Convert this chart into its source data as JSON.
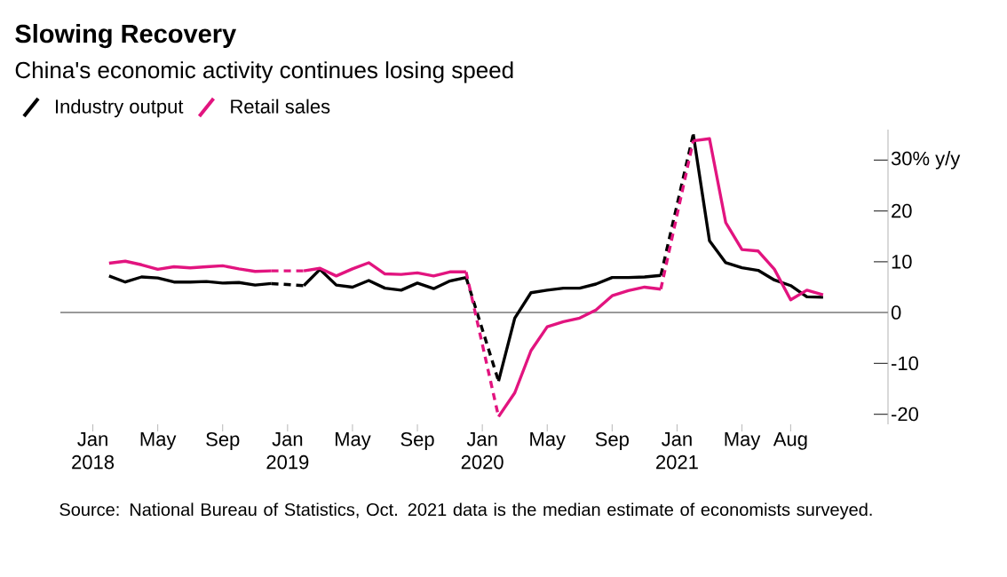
{
  "chart_data": {
    "type": "line",
    "title": "Slowing Recovery",
    "subtitle": "China's economic activity continues losing speed",
    "x": [
      "2018-02",
      "2018-03",
      "2018-04",
      "2018-05",
      "2018-06",
      "2018-07",
      "2018-08",
      "2018-09",
      "2018-10",
      "2018-11",
      "2018-12",
      "2019-01",
      "2019-02",
      "2019-03",
      "2019-04",
      "2019-05",
      "2019-06",
      "2019-07",
      "2019-08",
      "2019-09",
      "2019-10",
      "2019-11",
      "2019-12",
      "2020-01",
      "2020-02",
      "2020-03",
      "2020-04",
      "2020-05",
      "2020-06",
      "2020-07",
      "2020-08",
      "2020-09",
      "2020-10",
      "2020-11",
      "2020-12",
      "2021-01",
      "2021-02",
      "2021-03",
      "2021-04",
      "2021-05",
      "2021-06",
      "2021-07",
      "2021-08",
      "2021-09",
      "2021-10"
    ],
    "series": [
      {
        "name": "Industry output",
        "color": "#000000",
        "values": [
          7.2,
          6.0,
          7.0,
          6.8,
          6.0,
          6.0,
          6.1,
          5.8,
          5.9,
          5.4,
          5.7,
          null,
          5.3,
          8.5,
          5.4,
          5.0,
          6.3,
          4.8,
          4.4,
          5.8,
          4.7,
          6.2,
          6.9,
          null,
          -13.5,
          -1.1,
          3.9,
          4.4,
          4.8,
          4.8,
          5.6,
          6.9,
          6.9,
          7.0,
          7.3,
          null,
          35.1,
          14.1,
          9.8,
          8.8,
          8.3,
          6.4,
          5.3,
          3.1,
          3.0
        ]
      },
      {
        "name": "Retail sales",
        "color": "#e2147f",
        "values": [
          9.7,
          10.1,
          9.4,
          8.5,
          9.0,
          8.8,
          9.0,
          9.2,
          8.6,
          8.1,
          8.2,
          null,
          8.2,
          8.7,
          7.2,
          8.6,
          9.8,
          7.6,
          7.5,
          7.8,
          7.2,
          8.0,
          8.0,
          null,
          -20.5,
          -15.8,
          -7.5,
          -2.8,
          -1.8,
          -1.1,
          0.5,
          3.3,
          4.3,
          5.0,
          4.6,
          null,
          33.8,
          34.2,
          17.7,
          12.4,
          12.1,
          8.5,
          2.5,
          4.4,
          3.5
        ]
      }
    ],
    "xlim": [
      "2017-11",
      "2022-02"
    ],
    "xticks": [
      {
        "value": "2018-01",
        "label": "Jan 2018"
      },
      {
        "value": "2018-05",
        "label": "May"
      },
      {
        "value": "2018-09",
        "label": "Sep"
      },
      {
        "value": "2019-01",
        "label": "Jan 2019"
      },
      {
        "value": "2019-05",
        "label": "May"
      },
      {
        "value": "2019-09",
        "label": "Sep"
      },
      {
        "value": "2020-01",
        "label": "Jan 2020"
      },
      {
        "value": "2020-05",
        "label": "May"
      },
      {
        "value": "2020-09",
        "label": "Sep"
      },
      {
        "value": "2021-01",
        "label": "Jan 2021"
      },
      {
        "value": "2021-05",
        "label": "May"
      },
      {
        "value": "2021-08",
        "label": "Aug"
      }
    ],
    "ylim": [
      -22,
      36
    ],
    "ref_lines": [
      {
        "axis": "y",
        "value": 0,
        "color": "#999999"
      }
    ],
    "yticks": [
      {
        "value": 30,
        "label": "30% y/y"
      },
      20,
      10,
      0,
      -10,
      -20
    ],
    "legend": "top left",
    "grid": false,
    "line_style": "solid",
    "marker": "none",
    "annotations": [
      "Source: National Bureau of Statistics, Oct. 2021 data is the median estimate of economists surveyed."
    ]
  }
}
